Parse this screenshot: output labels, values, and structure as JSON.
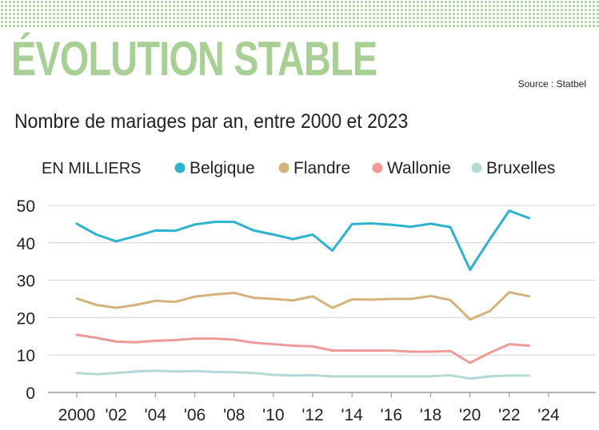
{
  "header": {
    "title": "ÉVOLUTION STABLE",
    "source": "Source : Statbel",
    "subtitle": "Nombre de mariages par an, entre 2000 et 2023"
  },
  "chart_data": {
    "type": "line",
    "unit_label": "EN MILLIERS",
    "x": [
      2000,
      2001,
      2002,
      2003,
      2004,
      2005,
      2006,
      2007,
      2008,
      2009,
      2010,
      2011,
      2012,
      2013,
      2014,
      2015,
      2016,
      2017,
      2018,
      2019,
      2020,
      2021,
      2022,
      2023
    ],
    "x_tick_values": [
      2000,
      2002,
      2004,
      2006,
      2008,
      2010,
      2012,
      2014,
      2016,
      2018,
      2020,
      2022,
      2024
    ],
    "x_tick_labels": [
      "2000",
      "'02",
      "'04",
      "'06",
      "'08",
      "'10",
      "'12",
      "'14",
      "'16",
      "'18",
      "'20",
      "'22",
      "'24"
    ],
    "y_ticks": [
      0,
      10,
      20,
      30,
      40,
      50
    ],
    "ylim": [
      0,
      50
    ],
    "xlim": [
      2000,
      2024
    ],
    "grid": true,
    "legend_position": "top",
    "series": [
      {
        "name": "Belgique",
        "color": "#2bb3cf",
        "values": [
          45.1,
          42.2,
          40.4,
          41.8,
          43.3,
          43.2,
          44.9,
          45.6,
          45.6,
          43.3,
          42.2,
          41.0,
          42.2,
          37.9,
          45.0,
          45.2,
          44.8,
          44.3,
          45.1,
          44.2,
          32.8,
          40.9,
          48.6,
          46.6
        ]
      },
      {
        "name": "Flandre",
        "color": "#d6b27a",
        "values": [
          25.1,
          23.4,
          22.6,
          23.4,
          24.5,
          24.2,
          25.6,
          26.2,
          26.6,
          25.3,
          25.0,
          24.6,
          25.7,
          22.6,
          24.9,
          24.8,
          25.0,
          25.0,
          25.8,
          24.7,
          19.5,
          21.7,
          26.8,
          25.7
        ]
      },
      {
        "name": "Wallonie",
        "color": "#ee9a99",
        "values": [
          15.4,
          14.6,
          13.6,
          13.4,
          13.8,
          14.0,
          14.4,
          14.4,
          14.1,
          13.3,
          12.9,
          12.5,
          12.3,
          11.2,
          11.2,
          11.2,
          11.2,
          10.9,
          10.9,
          11.1,
          7.9,
          10.6,
          12.9,
          12.5
        ]
      },
      {
        "name": "Bruxelles",
        "color": "#b3d9d7",
        "values": [
          5.2,
          4.9,
          5.2,
          5.6,
          5.8,
          5.6,
          5.7,
          5.5,
          5.4,
          5.2,
          4.7,
          4.5,
          4.6,
          4.3,
          4.3,
          4.3,
          4.3,
          4.3,
          4.3,
          4.6,
          3.7,
          4.3,
          4.5,
          4.5
        ]
      }
    ]
  }
}
